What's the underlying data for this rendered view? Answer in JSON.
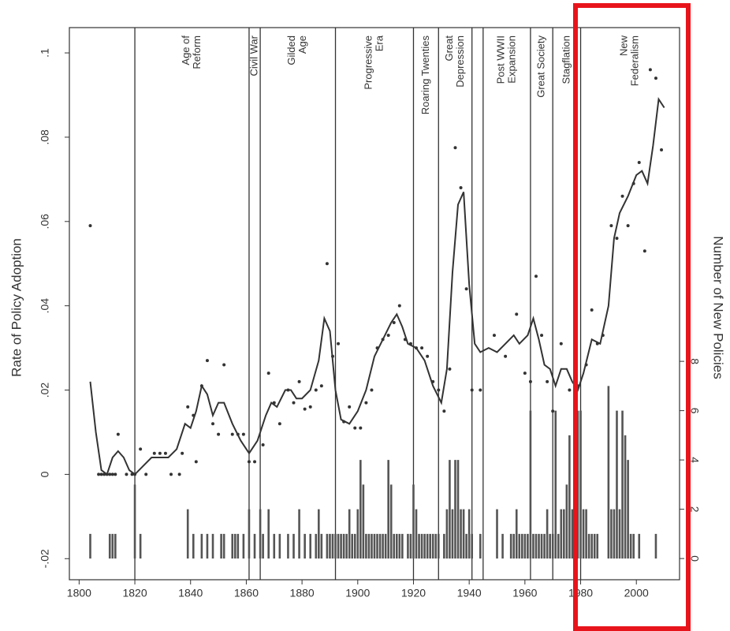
{
  "chart_data": {
    "type": "scatter",
    "y_label": "Rate of Policy Adoption",
    "y2_label": "Number of New Policies",
    "color": "#333333",
    "bar_color": "#555555",
    "xlim": [
      1796.5,
      2015.5
    ],
    "xticks": [
      1800,
      1820,
      1840,
      1860,
      1880,
      1900,
      1920,
      1940,
      1960,
      1980,
      2000
    ],
    "ylim": [
      -0.025,
      0.106
    ],
    "yticks": [
      {
        "value": -0.02,
        "label": "-.02"
      },
      0,
      {
        "value": 0.02,
        "label": ".02"
      },
      {
        "value": 0.04,
        "label": ".04"
      },
      {
        "value": 0.06,
        "label": ".06"
      },
      {
        "value": 0.08,
        "label": ".08"
      },
      {
        "value": 0.1,
        "label": ".1"
      }
    ],
    "y2lim": [
      -0.86,
      21.54
    ],
    "y2ticks": [
      0,
      2,
      4,
      6,
      8
    ],
    "era_lines": [
      1820,
      1861,
      1865,
      1892,
      1920,
      1929,
      1941,
      1945,
      1962,
      1970,
      1980
    ],
    "eras": [
      {
        "lines": [
          "Age of",
          "Reform"
        ],
        "start": 1820
      },
      {
        "lines": [
          "Civil War"
        ],
        "start": 1861
      },
      {
        "lines": [
          "Gilded",
          "Age"
        ],
        "start": 1865
      },
      {
        "lines": [
          "Progressive",
          "Era"
        ],
        "start": 1892
      },
      {
        "lines": [
          "Roaring Twenties"
        ],
        "start": 1920
      },
      {
        "lines": [
          "Great",
          "Depression"
        ],
        "start": 1929
      },
      {
        "lines": [
          "Post WWII",
          "Expansion"
        ],
        "start": 1945
      },
      {
        "lines": [
          "Great Society"
        ],
        "start": 1962
      },
      {
        "lines": [
          "Stagflation"
        ],
        "start": 1970
      },
      {
        "lines": [
          "New",
          "Federalism"
        ],
        "start": 1980
      }
    ],
    "points": {
      "x": [
        1804,
        1807,
        1808,
        1809,
        1810,
        1811,
        1812,
        1813,
        1814,
        1817,
        1819,
        1820,
        1822,
        1824,
        1827,
        1829,
        1831,
        1833,
        1836,
        1837,
        1839,
        1841,
        1842,
        1844,
        1846,
        1848,
        1850,
        1852,
        1855,
        1857,
        1859,
        1861,
        1863,
        1866,
        1868,
        1870,
        1872,
        1875,
        1877,
        1879,
        1881,
        1883,
        1885,
        1887,
        1889,
        1891,
        1893,
        1895,
        1897,
        1899,
        1901,
        1903,
        1905,
        1907,
        1909,
        1911,
        1913,
        1915,
        1917,
        1919,
        1921,
        1923,
        1925,
        1927,
        1929,
        1931,
        1933,
        1935,
        1937,
        1939,
        1941,
        1944,
        1949,
        1953,
        1957,
        1960,
        1962,
        1964,
        1966,
        1968,
        1970,
        1973,
        1976,
        1979,
        1982,
        1984,
        1986,
        1988,
        1991,
        1993,
        1995,
        1997,
        1999,
        2001,
        2003,
        2005,
        2007,
        2009
      ],
      "values": [
        0.059,
        0,
        0,
        0,
        0,
        0,
        0,
        0,
        0.0095,
        0,
        0,
        0,
        0.006,
        0,
        0.005,
        0.005,
        0.005,
        0,
        0,
        0.005,
        0.016,
        0.014,
        0.003,
        0.021,
        0.027,
        0.012,
        0.0095,
        0.026,
        0.0095,
        0.0095,
        0.0095,
        0.003,
        0.003,
        0.007,
        0.024,
        0.017,
        0.012,
        0.02,
        0.017,
        0.022,
        0.0155,
        0.016,
        0.02,
        0.021,
        0.05,
        0.028,
        0.031,
        0.0125,
        0.016,
        0.011,
        0.011,
        0.017,
        0.02,
        0.03,
        0.032,
        0.033,
        0.036,
        0.04,
        0.032,
        0.031,
        0.03,
        0.03,
        0.028,
        0.022,
        0.02,
        0.015,
        0.025,
        0.0775,
        0.068,
        0.044,
        0.02,
        0.02,
        0.033,
        0.028,
        0.038,
        0.024,
        0.022,
        0.047,
        0.033,
        0.022,
        0.015,
        0.031,
        0.02,
        0.021,
        0.026,
        0.039,
        0.031,
        0.033,
        0.059,
        0.056,
        0.066,
        0.059,
        0.069,
        0.074,
        0.053,
        0.096,
        0.094,
        0.077
      ]
    },
    "fit": {
      "x": [
        1804,
        1806,
        1808,
        1810,
        1812,
        1814,
        1816,
        1818,
        1820,
        1823,
        1826,
        1829,
        1832,
        1835,
        1838,
        1840,
        1842,
        1844,
        1846,
        1848,
        1850,
        1852,
        1855,
        1858,
        1861,
        1864,
        1867,
        1869,
        1871,
        1874,
        1876,
        1878,
        1880,
        1883,
        1886,
        1888,
        1890,
        1892,
        1894,
        1897,
        1900,
        1903,
        1906,
        1909,
        1912,
        1914,
        1916,
        1918,
        1921,
        1924,
        1927,
        1930,
        1932,
        1934,
        1936,
        1938,
        1940,
        1942,
        1944,
        1947,
        1950,
        1953,
        1956,
        1958,
        1961,
        1963,
        1965,
        1967,
        1969,
        1971,
        1973,
        1975,
        1977,
        1979,
        1981,
        1984,
        1987,
        1990,
        1992,
        1994,
        1997,
        2000,
        2002,
        2004,
        2006,
        2008,
        2010
      ],
      "values": [
        0.022,
        0.01,
        0.001,
        0,
        0.004,
        0.0055,
        0.004,
        0.001,
        0,
        0.002,
        0.004,
        0.004,
        0.004,
        0.006,
        0.012,
        0.011,
        0.015,
        0.021,
        0.019,
        0.014,
        0.017,
        0.017,
        0.012,
        0.008,
        0.005,
        0.008,
        0.014,
        0.017,
        0.016,
        0.02,
        0.02,
        0.018,
        0.018,
        0.02,
        0.027,
        0.037,
        0.034,
        0.02,
        0.013,
        0.012,
        0.015,
        0.02,
        0.028,
        0.032,
        0.036,
        0.038,
        0.035,
        0.031,
        0.03,
        0.027,
        0.021,
        0.017,
        0.025,
        0.048,
        0.064,
        0.067,
        0.045,
        0.031,
        0.029,
        0.03,
        0.029,
        0.031,
        0.033,
        0.031,
        0.033,
        0.037,
        0.032,
        0.026,
        0.025,
        0.021,
        0.025,
        0.025,
        0.022,
        0.02,
        0.024,
        0.032,
        0.031,
        0.04,
        0.056,
        0.062,
        0.066,
        0.071,
        0.072,
        0.069,
        0.078,
        0.089,
        0.087
      ]
    },
    "bars": {
      "axis": "y2",
      "x": [
        1804,
        1811,
        1812,
        1813,
        1820,
        1822,
        1839,
        1841,
        1844,
        1846,
        1848,
        1851,
        1852,
        1855,
        1856,
        1857,
        1859,
        1861,
        1863,
        1865,
        1866,
        1868,
        1870,
        1872,
        1875,
        1877,
        1879,
        1881,
        1883,
        1885,
        1886,
        1887,
        1889,
        1890,
        1891,
        1892,
        1893,
        1894,
        1895,
        1896,
        1897,
        1898,
        1899,
        1900,
        1901,
        1902,
        1903,
        1904,
        1905,
        1906,
        1907,
        1908,
        1909,
        1910,
        1911,
        1912,
        1913,
        1914,
        1915,
        1916,
        1918,
        1919,
        1920,
        1921,
        1922,
        1923,
        1924,
        1925,
        1926,
        1927,
        1928,
        1929,
        1931,
        1932,
        1933,
        1934,
        1935,
        1936,
        1937,
        1938,
        1939,
        1940,
        1941,
        1944,
        1950,
        1952,
        1955,
        1956,
        1957,
        1958,
        1959,
        1960,
        1961,
        1962,
        1963,
        1964,
        1965,
        1966,
        1967,
        1968,
        1969,
        1970,
        1971,
        1972,
        1973,
        1974,
        1975,
        1976,
        1977,
        1978,
        1979,
        1980,
        1981,
        1982,
        1983,
        1984,
        1985,
        1986,
        1990,
        1991,
        1992,
        1993,
        1994,
        1995,
        1996,
        1997,
        1998,
        1999,
        2001,
        2007
      ],
      "values": [
        1,
        1,
        1,
        1,
        3,
        1,
        2,
        1,
        1,
        1,
        1,
        1,
        1,
        1,
        1,
        1,
        1,
        2,
        1,
        2,
        1,
        2,
        1,
        1,
        1,
        1,
        2,
        1,
        1,
        1,
        2,
        1,
        1,
        1,
        1,
        1,
        1,
        1,
        1,
        1,
        2,
        1,
        1,
        2,
        4,
        3,
        1,
        1,
        1,
        1,
        1,
        1,
        1,
        1,
        4,
        3,
        1,
        1,
        1,
        1,
        1,
        1,
        3,
        2,
        1,
        1,
        1,
        1,
        1,
        1,
        1,
        1,
        1,
        2,
        4,
        2,
        4,
        4,
        2,
        2,
        1,
        2,
        1,
        1,
        2,
        1,
        1,
        1,
        2,
        1,
        1,
        1,
        1,
        6,
        1,
        1,
        1,
        1,
        1,
        2,
        1,
        1,
        6,
        1,
        2,
        2,
        3,
        5,
        2,
        1,
        6,
        6,
        2,
        2,
        1,
        1,
        1,
        1,
        7,
        2,
        2,
        6,
        2,
        6,
        5,
        4,
        1,
        1,
        1,
        1
      ]
    }
  }
}
